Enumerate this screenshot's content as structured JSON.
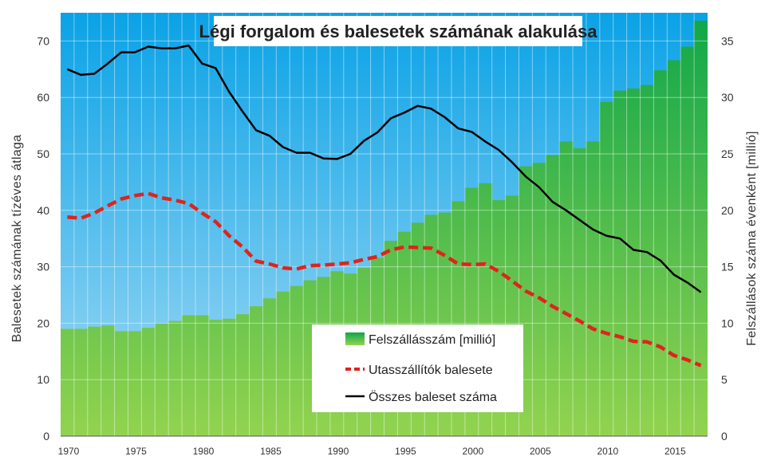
{
  "chart_data": {
    "type": "bar+line",
    "title": "Légi forgalom és balesetek számának alakulása",
    "ylabel_left": "Balesetek számának tízéves átlaga",
    "ylabel_right": "Felszállások száma évenként [millió]",
    "xlabel": "",
    "ylim_left": [
      0,
      75
    ],
    "ylim_right": [
      0,
      37.5
    ],
    "yticks_left": [
      "0",
      "10",
      "20",
      "30",
      "40",
      "50",
      "60",
      "70"
    ],
    "yticks_right": [
      "0",
      "5",
      "10",
      "15",
      "20",
      "25",
      "30",
      "35"
    ],
    "xticks": [
      "1970",
      "1975",
      "1980",
      "1985",
      "1990",
      "1995",
      "2000",
      "2005",
      "2010",
      "2015"
    ],
    "grid": true,
    "legend_position": "bottom-center",
    "years": [
      1970,
      1971,
      1972,
      1973,
      1974,
      1975,
      1976,
      1977,
      1978,
      1979,
      1980,
      1981,
      1982,
      1983,
      1984,
      1985,
      1986,
      1987,
      1988,
      1989,
      1990,
      1991,
      1992,
      1993,
      1994,
      1995,
      1996,
      1997,
      1998,
      1999,
      2000,
      2001,
      2002,
      2003,
      2004,
      2005,
      2006,
      2007,
      2008,
      2009,
      2010,
      2011,
      2012,
      2013,
      2014,
      2015,
      2016,
      2017
    ],
    "series": [
      {
        "name": "Felszállásszám [millió]",
        "axis": "right",
        "kind": "bar",
        "color": "#22b14c",
        "values": [
          9.5,
          9.5,
          9.7,
          9.8,
          9.3,
          9.3,
          9.6,
          10.0,
          10.2,
          10.7,
          10.7,
          10.3,
          10.4,
          10.8,
          11.5,
          12.2,
          12.8,
          13.3,
          13.8,
          14.1,
          14.6,
          14.4,
          14.9,
          15.8,
          17.3,
          18.1,
          18.9,
          19.6,
          19.8,
          20.8,
          22.0,
          22.4,
          20.9,
          21.3,
          23.9,
          24.2,
          24.9,
          26.1,
          25.5,
          26.1,
          29.6,
          30.6,
          30.8,
          31.1,
          32.4,
          33.3,
          34.5,
          36.8
        ]
      },
      {
        "name": "Utasszállítók balesete",
        "axis": "left",
        "kind": "line",
        "style": "dashed",
        "color": "#e0231c",
        "values": [
          38.8,
          38.6,
          39.5,
          40.8,
          42.0,
          42.6,
          43.0,
          42.2,
          41.8,
          41.2,
          39.5,
          38.0,
          35.5,
          33.5,
          31.0,
          30.5,
          29.8,
          29.6,
          30.2,
          30.3,
          30.5,
          30.7,
          31.3,
          31.8,
          33.0,
          33.5,
          33.4,
          33.3,
          32.0,
          30.5,
          30.4,
          30.5,
          29.2,
          27.5,
          25.7,
          24.5,
          23.0,
          21.7,
          20.4,
          19.0,
          18.2,
          17.6,
          16.8,
          16.7,
          15.8,
          14.3,
          13.5,
          12.5
        ]
      },
      {
        "name": "Összes baleset száma",
        "axis": "left",
        "kind": "line",
        "style": "solid",
        "color": "#000000",
        "values": [
          65.0,
          64.0,
          64.2,
          66.0,
          68.0,
          68.0,
          69.0,
          68.7,
          68.7,
          69.2,
          66.0,
          65.2,
          61.0,
          57.5,
          54.2,
          53.2,
          51.2,
          50.2,
          50.2,
          49.2,
          49.1,
          50.0,
          52.3,
          53.8,
          56.3,
          57.3,
          58.5,
          58.0,
          56.5,
          54.5,
          53.9,
          52.2,
          50.7,
          48.5,
          46.0,
          44.1,
          41.5,
          40.0,
          38.3,
          36.6,
          35.5,
          35.0,
          33.0,
          32.6,
          31.1,
          28.6,
          27.2,
          25.5
        ]
      }
    ]
  },
  "colors": {
    "sky_top": "#0aa2e6",
    "sky_bottom": "#9fd7f2",
    "bar_top": "#13a84a",
    "bar_bottom": "#8fd14f"
  }
}
